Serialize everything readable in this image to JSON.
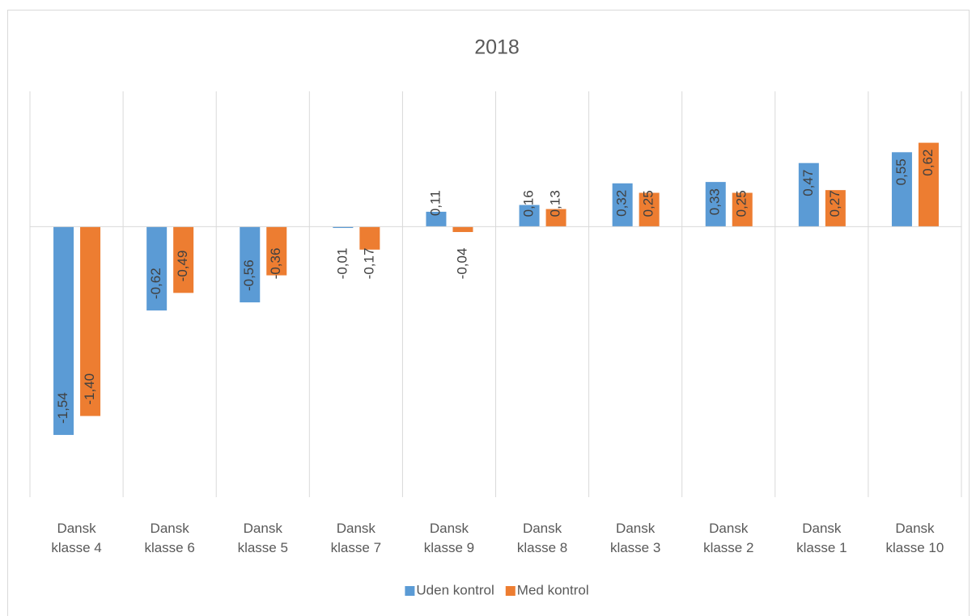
{
  "chart_data": {
    "type": "bar",
    "title": "2018",
    "categories": [
      "Dansk klasse 4",
      "Dansk klasse 6",
      "Dansk klasse 5",
      "Dansk klasse 7",
      "Dansk klasse 9",
      "Dansk klasse 8",
      "Dansk klasse 3",
      "Dansk klasse 2",
      "Dansk klasse 1",
      "Dansk klasse 10"
    ],
    "series": [
      {
        "name": "Uden kontrol",
        "color": "#5b9bd5",
        "values": [
          -1.54,
          -0.62,
          -0.56,
          -0.01,
          0.11,
          0.16,
          0.32,
          0.33,
          0.47,
          0.55
        ],
        "value_labels": [
          "-1,54",
          "-0,62",
          "-0,56",
          "-0,01",
          "0,11",
          "0,16",
          "0,32",
          "0,33",
          "0,47",
          "0,55"
        ]
      },
      {
        "name": "Med kontrol",
        "color": "#ed7d31",
        "values": [
          -1.4,
          -0.49,
          -0.36,
          -0.17,
          -0.04,
          0.13,
          0.25,
          0.25,
          0.27,
          0.62
        ],
        "value_labels": [
          "-1,40",
          "-0,49",
          "-0,36",
          "-0,17",
          "-0,04",
          "0,13",
          "0,25",
          "0,25",
          "0,27",
          "0,62"
        ]
      }
    ],
    "ylim": [
      -2,
      1
    ],
    "legend": "bottom"
  }
}
